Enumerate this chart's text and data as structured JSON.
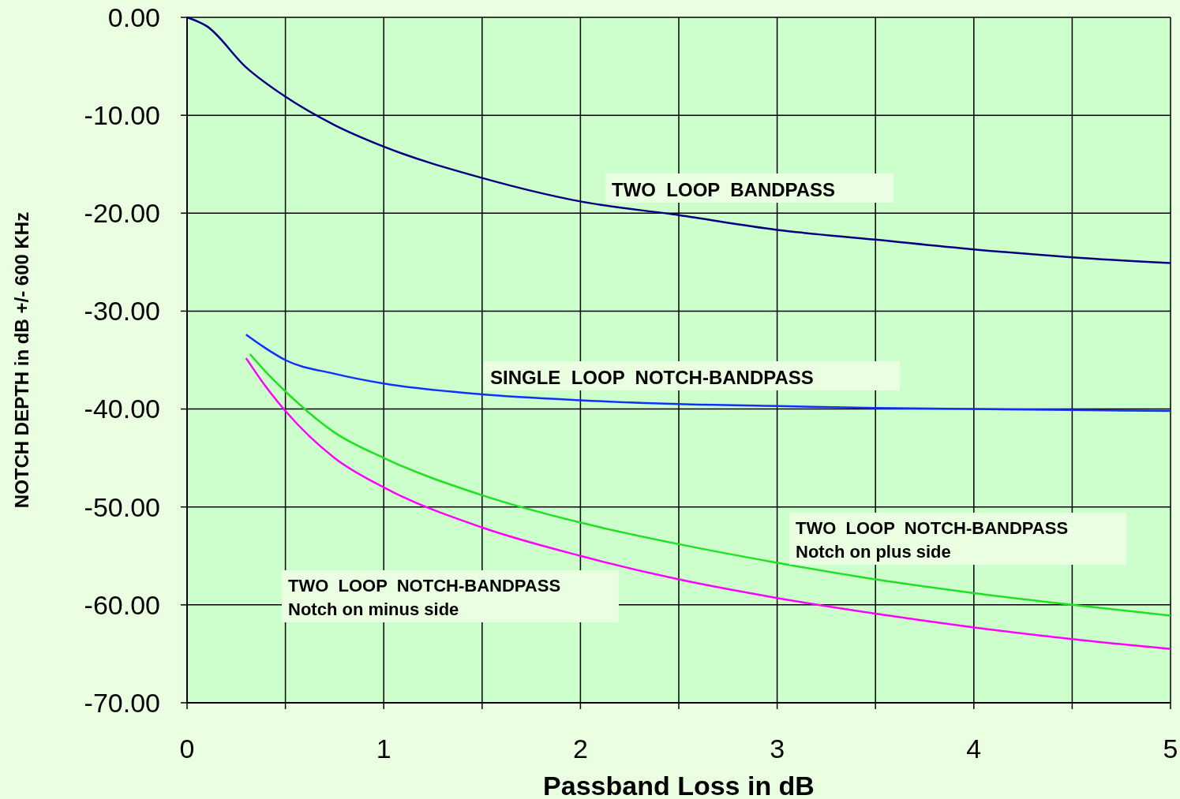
{
  "chart_data": {
    "type": "line",
    "xlabel": "Passband  Loss in dB",
    "ylabel": "NOTCH DEPTH in dB  +/- 600 KHz",
    "xlim": [
      0,
      5
    ],
    "ylim": [
      -70,
      0
    ],
    "xticks": [
      0,
      {
        "value": 0.5,
        "label": null
      },
      1,
      {
        "value": 1.5,
        "label": null
      },
      2,
      {
        "value": 2.5,
        "label": null
      },
      3,
      {
        "value": 3.5,
        "label": null
      },
      4,
      {
        "value": 4.5,
        "label": null
      },
      5
    ],
    "yticks": [
      {
        "value": 0,
        "label": "0.00"
      },
      {
        "value": -10,
        "label": "-10.00"
      },
      {
        "value": -20,
        "label": "-20.00"
      },
      {
        "value": -30,
        "label": "-30.00"
      },
      {
        "value": -40,
        "label": "-40.00"
      },
      {
        "value": -50,
        "label": "-50.00"
      },
      {
        "value": -60,
        "label": "-60.00"
      },
      {
        "value": -70,
        "label": "-70.00"
      }
    ],
    "grid": true,
    "marker": "none",
    "line_style": "solid",
    "series": [
      {
        "color": "#000080",
        "x": [
          0,
          0.1,
          0.3,
          0.5,
          0.75,
          1,
          1.5,
          2,
          2.5,
          3,
          3.5,
          4,
          4.5,
          5
        ],
        "values": [
          0,
          -0.9,
          -5.1,
          -8.1,
          -11,
          -13.2,
          -16.4,
          -18.8,
          -20.2,
          -21.7,
          -22.7,
          -23.7,
          -24.5,
          -25.1
        ]
      },
      {
        "color": "#1030ff",
        "x": [
          0.3,
          0.4,
          0.5,
          0.75,
          1,
          1.5,
          2,
          2.5,
          3,
          3.5,
          4,
          4.5,
          5
        ],
        "values": [
          -32.4,
          -33.8,
          -35,
          -36.4,
          -37.4,
          -38.5,
          -39.1,
          -39.5,
          -39.7,
          -39.9,
          -40,
          -40.1,
          -40.2
        ]
      },
      {
        "color": "#20e020",
        "x": [
          0.32,
          0.4,
          0.5,
          0.75,
          1,
          1.5,
          2,
          2.5,
          3,
          3.5,
          4,
          4.5,
          5
        ],
        "values": [
          -34.4,
          -36.2,
          -38.2,
          -42.4,
          -45,
          -48.8,
          -51.6,
          -53.8,
          -55.7,
          -57.4,
          -58.8,
          -60,
          -61.1
        ]
      },
      {
        "color": "#ff00ff",
        "x": [
          0.3,
          0.4,
          0.5,
          0.75,
          1,
          1.5,
          2,
          2.5,
          3,
          3.5,
          4,
          4.5,
          5
        ],
        "values": [
          -34.8,
          -37.7,
          -40.2,
          -45,
          -48,
          -52.1,
          -55,
          -57.4,
          -59.3,
          -60.9,
          -62.3,
          -63.5,
          -64.5
        ]
      }
    ],
    "annotations": [
      "TWO  LOOP  BANDPASS",
      "SINGLE  LOOP  NOTCH-BANDPASS",
      "TWO  LOOP  NOTCH-BANDPASS\nNotch on plus side",
      "TWO  LOOP  NOTCH-BANDPASS\nNotch on minus side"
    ]
  }
}
